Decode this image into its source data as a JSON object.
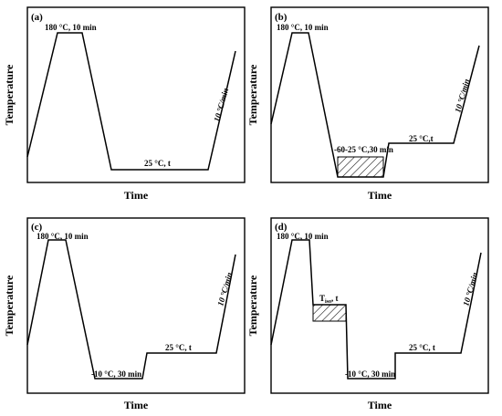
{
  "panels": [
    {
      "id": "a",
      "tag": "(a)",
      "y_label": "Temperature",
      "x_label": "Time",
      "annotations": [
        {
          "key": "peak",
          "text": "180 °C, 10 min"
        },
        {
          "key": "hold",
          "text": "25 °C, t"
        },
        {
          "key": "rate",
          "text": "10 °C/min"
        }
      ]
    },
    {
      "id": "b",
      "tag": "(b)",
      "y_label": "Temperature",
      "x_label": "Time",
      "annotations": [
        {
          "key": "peak",
          "text": "180 °C, 10 min"
        },
        {
          "key": "quench",
          "text": "-60-25 °C,30 min"
        },
        {
          "key": "hold",
          "text": "25 °C,t"
        },
        {
          "key": "rate",
          "text": "10 °C/min"
        }
      ]
    },
    {
      "id": "c",
      "tag": "(c)",
      "y_label": "Temperature",
      "x_label": "Time",
      "annotations": [
        {
          "key": "peak",
          "text": "180 °C, 10 min"
        },
        {
          "key": "quench",
          "text": "-10 °C, 30 min"
        },
        {
          "key": "hold",
          "text": "25 °C, t"
        },
        {
          "key": "rate",
          "text": "10 °C/min"
        }
      ]
    },
    {
      "id": "d",
      "tag": "(d)",
      "y_label": "Temperature",
      "x_label": "Time",
      "annotations": [
        {
          "key": "peak",
          "text": "180 °C, 10 min"
        },
        {
          "key": "iso_main",
          "text": "T"
        },
        {
          "key": "iso_sub",
          "text": "iso"
        },
        {
          "key": "iso_tail",
          "text": ", t"
        },
        {
          "key": "quench",
          "text": "-10 °C, 30 min"
        },
        {
          "key": "hold",
          "text": "25 °C, t"
        },
        {
          "key": "rate",
          "text": "10 °C/min"
        }
      ]
    }
  ]
}
